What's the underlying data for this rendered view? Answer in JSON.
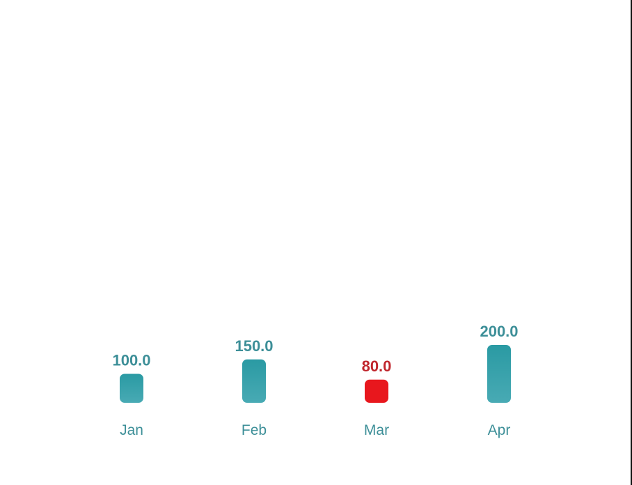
{
  "chart_data": {
    "type": "bar",
    "categories": [
      "Jan",
      "Feb",
      "Mar",
      "Apr"
    ],
    "values": [
      100.0,
      150.0,
      80.0,
      200.0
    ],
    "value_labels": [
      "100.0",
      "150.0",
      "80.0",
      "200.0"
    ],
    "highlight_index": 2,
    "title": "",
    "xlabel": "",
    "ylabel": "",
    "ylim": [
      0,
      200
    ],
    "grid": false,
    "colors": {
      "bar_top": "#2a9aa3",
      "bar_bottom": "#48aab4",
      "highlight": "#e8171d",
      "label": "#3d8f98",
      "highlight_label": "#c0262d",
      "tick": "#3d8f98"
    }
  }
}
